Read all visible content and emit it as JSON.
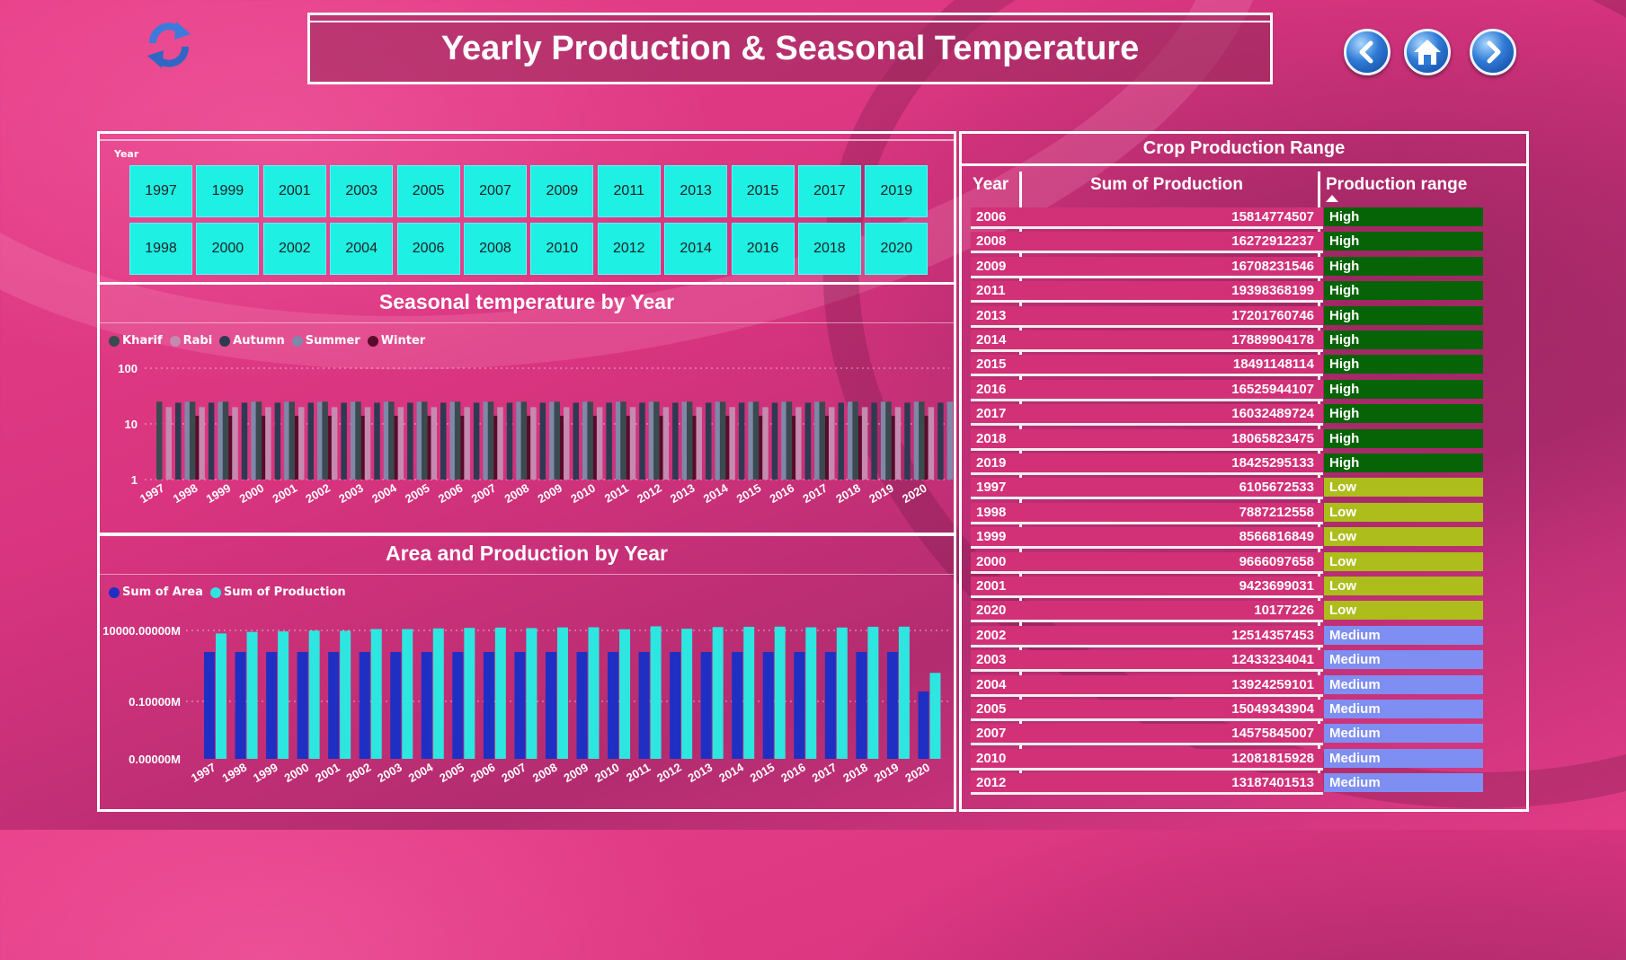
{
  "header": {
    "title": "Yearly Production & Seasonal Temperature"
  },
  "icons": {
    "refresh": "refresh-icon",
    "back": "chevron-left-icon",
    "home": "home-icon",
    "forward": "chevron-right-icon"
  },
  "slicer": {
    "label": "Year",
    "row1": [
      "1997",
      "1999",
      "2001",
      "2003",
      "2005",
      "2007",
      "2009",
      "2011",
      "2013",
      "2015",
      "2017",
      "2019"
    ],
    "row2": [
      "1998",
      "2000",
      "2002",
      "2004",
      "2006",
      "2008",
      "2010",
      "2012",
      "2014",
      "2016",
      "2018",
      "2020"
    ],
    "button_color": "#1ef0e4"
  },
  "seasonal_chart": {
    "title": "Seasonal temperature by Year"
  },
  "area_chart": {
    "title": "Area and Production by Year"
  },
  "chart_data": [
    {
      "type": "bar",
      "title": "Seasonal temperature by Year",
      "scale": "log",
      "yticks": [
        "1",
        "10",
        "100"
      ],
      "ylim": [
        1,
        100
      ],
      "grid": true,
      "legend_placement": "top-left",
      "categories": [
        "1997",
        "1998",
        "1999",
        "2000",
        "2001",
        "2002",
        "2003",
        "2004",
        "2005",
        "2006",
        "2007",
        "2008",
        "2009",
        "2010",
        "2011",
        "2012",
        "2013",
        "2014",
        "2015",
        "2016",
        "2017",
        "2018",
        "2019",
        "2020"
      ],
      "series": [
        {
          "name": "Kharif",
          "color": "#3a4a4f",
          "values": [
            25,
            25,
            25,
            25,
            25,
            25,
            25,
            25,
            25,
            25,
            25,
            25,
            25,
            25,
            25,
            25,
            25,
            25,
            25,
            25,
            25,
            25,
            25,
            25
          ]
        },
        {
          "name": "Rabi",
          "color": "#c58ab0",
          "values": [
            20,
            20,
            20,
            20,
            20,
            20,
            20,
            20,
            20,
            20,
            20,
            20,
            20,
            20,
            20,
            20,
            20,
            20,
            20,
            20,
            20,
            20,
            20,
            20
          ]
        },
        {
          "name": "Autumn",
          "color": "#2e3a52",
          "values": [
            24,
            24,
            24,
            24,
            24,
            24,
            24,
            24,
            24,
            24,
            24,
            24,
            24,
            24,
            24,
            24,
            24,
            24,
            24,
            24,
            24,
            24,
            24,
            24
          ]
        },
        {
          "name": "Summer",
          "color": "#7f88a8",
          "values": [
            25,
            25,
            25,
            25,
            25,
            25,
            25,
            25,
            25,
            25,
            25,
            25,
            25,
            25,
            25,
            25,
            25,
            25,
            25,
            25,
            25,
            25,
            25,
            25
          ]
        },
        {
          "name": "Winter",
          "color": "#5a0a2a",
          "values": [
            14,
            14,
            14,
            14,
            14,
            14,
            14,
            14,
            14,
            14,
            14,
            14,
            14,
            14,
            14,
            14,
            14,
            14,
            14,
            14,
            14,
            14,
            14,
            14
          ]
        }
      ]
    },
    {
      "type": "bar",
      "title": "Area and Production by Year",
      "scale": "log",
      "yticks": [
        "0.00000M",
        "0.10000M",
        "10000.00000M"
      ],
      "grid": true,
      "legend_placement": "top-left",
      "categories": [
        "1997",
        "1998",
        "1999",
        "2000",
        "2001",
        "2002",
        "2003",
        "2004",
        "2005",
        "2006",
        "2007",
        "2008",
        "2009",
        "2010",
        "2011",
        "2012",
        "2013",
        "2014",
        "2015",
        "2016",
        "2017",
        "2018",
        "2019",
        "2020"
      ],
      "series": [
        {
          "name": "Sum of Area",
          "color": "#1f2fc4",
          "values": [
            300,
            300,
            300,
            300,
            300,
            300,
            300,
            300,
            300,
            300,
            300,
            300,
            300,
            300,
            300,
            300,
            300,
            300,
            300,
            300,
            300,
            300,
            300,
            0.5
          ]
        },
        {
          "name": "Sum of Production",
          "color": "#2ee6e0",
          "values": [
            6106,
            7887,
            8567,
            9666,
            9424,
            12514,
            12433,
            13924,
            15049,
            15815,
            14576,
            16273,
            16708,
            12082,
            19398,
            13187,
            17202,
            17890,
            18491,
            16526,
            16032,
            18066,
            18425,
            10.18
          ]
        }
      ]
    }
  ],
  "table": {
    "title": "Crop Production Range",
    "headers": {
      "year": "Year",
      "sum": "Sum of Production",
      "range": "Production range"
    },
    "colors": {
      "High": "#066406",
      "Low": "#adbd1c",
      "Medium": "#7f8ef2"
    },
    "rows": [
      {
        "year": "2006",
        "sum": "15814774507",
        "range": "High"
      },
      {
        "year": "2008",
        "sum": "16272912237",
        "range": "High"
      },
      {
        "year": "2009",
        "sum": "16708231546",
        "range": "High"
      },
      {
        "year": "2011",
        "sum": "19398368199",
        "range": "High"
      },
      {
        "year": "2013",
        "sum": "17201760746",
        "range": "High"
      },
      {
        "year": "2014",
        "sum": "17889904178",
        "range": "High"
      },
      {
        "year": "2015",
        "sum": "18491148114",
        "range": "High"
      },
      {
        "year": "2016",
        "sum": "16525944107",
        "range": "High"
      },
      {
        "year": "2017",
        "sum": "16032489724",
        "range": "High"
      },
      {
        "year": "2018",
        "sum": "18065823475",
        "range": "High"
      },
      {
        "year": "2019",
        "sum": "18425295133",
        "range": "High"
      },
      {
        "year": "1997",
        "sum": "6105672533",
        "range": "Low"
      },
      {
        "year": "1998",
        "sum": "7887212558",
        "range": "Low"
      },
      {
        "year": "1999",
        "sum": "8566816849",
        "range": "Low"
      },
      {
        "year": "2000",
        "sum": "9666097658",
        "range": "Low"
      },
      {
        "year": "2001",
        "sum": "9423699031",
        "range": "Low"
      },
      {
        "year": "2020",
        "sum": "10177226",
        "range": "Low"
      },
      {
        "year": "2002",
        "sum": "12514357453",
        "range": "Medium"
      },
      {
        "year": "2003",
        "sum": "12433234041",
        "range": "Medium"
      },
      {
        "year": "2004",
        "sum": "13924259101",
        "range": "Medium"
      },
      {
        "year": "2005",
        "sum": "15049343904",
        "range": "Medium"
      },
      {
        "year": "2007",
        "sum": "14575845007",
        "range": "Medium"
      },
      {
        "year": "2010",
        "sum": "12081815928",
        "range": "Medium"
      },
      {
        "year": "2012",
        "sum": "13187401513",
        "range": "Medium"
      }
    ]
  }
}
